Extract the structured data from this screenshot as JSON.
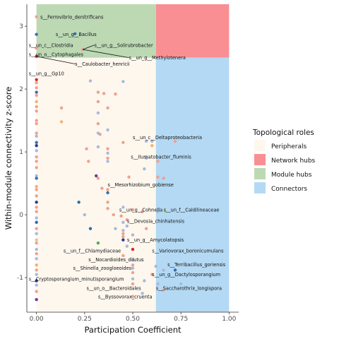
{
  "chart_data": {
    "type": "scatter",
    "xlabel": "Participation Coefficient",
    "ylabel": "Within-module connectivity z-score",
    "xlim": [
      -0.05,
      1.05
    ],
    "ylim": [
      -1.55,
      3.35
    ],
    "x_ticks": [
      0,
      0.25,
      0.5,
      0.75,
      1
    ],
    "x_tick_labels": [
      "0.00",
      "0.25",
      "0.50",
      "0.75",
      "1.00"
    ],
    "y_ticks": [
      -1,
      0,
      1,
      2,
      3
    ],
    "y_tick_labels": [
      "-1",
      "0",
      "1",
      "2",
      "3"
    ],
    "grid": false,
    "regions": [
      {
        "name": "Peripherals",
        "color": "#fdf7ee",
        "x": [
          0,
          0.62
        ],
        "y": [
          -1.55,
          2.5
        ]
      },
      {
        "name": "Network hubs",
        "color": "#f98f93",
        "x": [
          0.62,
          1.0
        ],
        "y": [
          2.5,
          3.35
        ]
      },
      {
        "name": "Module hubs",
        "color": "#bcd9b4",
        "x": [
          0,
          0.62
        ],
        "y": [
          2.5,
          3.35
        ]
      },
      {
        "name": "Connectors",
        "color": "#b4d9f4",
        "x": [
          0.62,
          1.0
        ],
        "y": [
          -1.55,
          2.5
        ]
      }
    ],
    "legend": {
      "title": "Topological roles",
      "position": "right",
      "entries": [
        {
          "label": "Peripherals",
          "color": "#fdf7ee"
        },
        {
          "label": "Network hubs",
          "color": "#f98f93"
        },
        {
          "label": "Module hubs",
          "color": "#bcd9b4"
        },
        {
          "label": "Connectors",
          "color": "#b4d9f4"
        }
      ]
    },
    "points": [
      {
        "x": 0.0,
        "y": 3.15,
        "c": "#f0a090"
      },
      {
        "x": 0.0,
        "y": 2.87,
        "c": "#3a6fb0"
      },
      {
        "x": 0.0,
        "y": 2.65,
        "c": "#f0a090"
      },
      {
        "x": 0.0,
        "y": 2.52,
        "c": "#d62728"
      },
      {
        "x": 0.0,
        "y": 2.15,
        "c": "#d62728"
      },
      {
        "x": 0.0,
        "y": 2.1,
        "c": "#f0a090"
      },
      {
        "x": 0.0,
        "y": 2.02,
        "c": "#f0a090"
      },
      {
        "x": 0.0,
        "y": 1.95,
        "c": "#3a6fb0"
      },
      {
        "x": 0.0,
        "y": 1.9,
        "c": "#f0a090"
      },
      {
        "x": 0.0,
        "y": 1.8,
        "c": "#f4b26a"
      },
      {
        "x": 0.0,
        "y": 1.72,
        "c": "#f0a090"
      },
      {
        "x": 0.0,
        "y": 1.65,
        "c": "#f0a090"
      },
      {
        "x": 0.0,
        "y": 1.5,
        "c": "#f0a090"
      },
      {
        "x": 0.0,
        "y": 1.45,
        "c": "#f0a090"
      },
      {
        "x": 0.0,
        "y": 1.3,
        "c": "#f0a090"
      },
      {
        "x": 0.0,
        "y": 1.25,
        "c": "#a8b9dd"
      },
      {
        "x": 0.0,
        "y": 1.15,
        "c": "#3a6fb0"
      },
      {
        "x": 0.0,
        "y": 1.1,
        "c": "#2b3a8f"
      },
      {
        "x": 0.0,
        "y": 1.02,
        "c": "#a8b9dd"
      },
      {
        "x": 0.0,
        "y": 0.92,
        "c": "#f0a090"
      },
      {
        "x": 0.0,
        "y": 0.85,
        "c": "#f0a090"
      },
      {
        "x": 0.0,
        "y": 0.75,
        "c": "#f0a090"
      },
      {
        "x": 0.0,
        "y": 0.62,
        "c": "#a8b9dd"
      },
      {
        "x": 0.0,
        "y": 0.58,
        "c": "#3a6fb0"
      },
      {
        "x": 0.0,
        "y": 0.45,
        "c": "#f4b26a"
      },
      {
        "x": 0.0,
        "y": 0.4,
        "c": "#f0a090"
      },
      {
        "x": 0.0,
        "y": 0.3,
        "c": "#f0a090"
      },
      {
        "x": 0.0,
        "y": 0.2,
        "c": "#2b3a8f"
      },
      {
        "x": 0.0,
        "y": 0.12,
        "c": "#f0a090"
      },
      {
        "x": 0.0,
        "y": 0.05,
        "c": "#f0a090"
      },
      {
        "x": 0.0,
        "y": -0.05,
        "c": "#a8b9dd"
      },
      {
        "x": 0.0,
        "y": -0.12,
        "c": "#2b6cb0"
      },
      {
        "x": 0.0,
        "y": -0.22,
        "c": "#f0a090"
      },
      {
        "x": 0.0,
        "y": -0.3,
        "c": "#a8b9dd"
      },
      {
        "x": 0.0,
        "y": -0.4,
        "c": "#d4c9a0"
      },
      {
        "x": 0.0,
        "y": -0.45,
        "c": "#f0a090"
      },
      {
        "x": 0.0,
        "y": -0.55,
        "c": "#a8b9dd"
      },
      {
        "x": 0.0,
        "y": -0.62,
        "c": "#f0a090"
      },
      {
        "x": 0.0,
        "y": -0.7,
        "c": "#a8b9dd"
      },
      {
        "x": 0.0,
        "y": -0.8,
        "c": "#f4b26a"
      },
      {
        "x": 0.0,
        "y": -0.88,
        "c": "#f0a090"
      },
      {
        "x": 0.0,
        "y": -0.95,
        "c": "#a8b9dd"
      },
      {
        "x": 0.0,
        "y": -1.05,
        "c": "#2b3a8f"
      },
      {
        "x": 0.0,
        "y": -1.12,
        "c": "#a8b9dd"
      },
      {
        "x": 0.0,
        "y": -1.22,
        "c": "#f0a090"
      },
      {
        "x": 0.0,
        "y": -1.35,
        "c": "#6a3d9a"
      },
      {
        "x": 0.2,
        "y": 2.88,
        "c": "#3a6fb0"
      },
      {
        "x": 0.24,
        "y": 2.63,
        "c": "#f0a090"
      },
      {
        "x": 0.28,
        "y": 2.13,
        "c": "#a8b9dd"
      },
      {
        "x": 0.32,
        "y": 1.95,
        "c": "#f0a090"
      },
      {
        "x": 0.35,
        "y": 1.93,
        "c": "#f0a090"
      },
      {
        "x": 0.41,
        "y": 1.92,
        "c": "#f0a090"
      },
      {
        "x": 0.45,
        "y": 2.12,
        "c": "#a8b9dd"
      },
      {
        "x": 0.32,
        "y": 1.8,
        "c": "#f0a090"
      },
      {
        "x": 0.37,
        "y": 1.7,
        "c": "#f0a090"
      },
      {
        "x": 0.13,
        "y": 1.7,
        "c": "#f0a090"
      },
      {
        "x": 0.32,
        "y": 1.62,
        "c": "#a8b9dd"
      },
      {
        "x": 0.13,
        "y": 1.48,
        "c": "#f4b26a"
      },
      {
        "x": 0.32,
        "y": 1.45,
        "c": "#f0a090"
      },
      {
        "x": 0.33,
        "y": 1.28,
        "c": "#f0a090"
      },
      {
        "x": 0.37,
        "y": 1.35,
        "c": "#a8b9dd"
      },
      {
        "x": 0.32,
        "y": 1.3,
        "c": "#a8b9dd"
      },
      {
        "x": 0.26,
        "y": 1.05,
        "c": "#f0a090"
      },
      {
        "x": 0.32,
        "y": 1.08,
        "c": "#a8b9dd"
      },
      {
        "x": 0.37,
        "y": 1.05,
        "c": "#f0a090"
      },
      {
        "x": 0.37,
        "y": 0.98,
        "c": "#a8b9dd"
      },
      {
        "x": 0.37,
        "y": 0.9,
        "c": "#f0a090"
      },
      {
        "x": 0.45,
        "y": 1.15,
        "c": "#f0a090"
      },
      {
        "x": 0.57,
        "y": 1.17,
        "c": "#a8b9dd"
      },
      {
        "x": 0.6,
        "y": 1.17,
        "c": "#a8b9dd"
      },
      {
        "x": 0.6,
        "y": 1.1,
        "c": "#f4b26a"
      },
      {
        "x": 0.72,
        "y": 1.17,
        "c": "#f0a090"
      },
      {
        "x": 0.57,
        "y": 0.9,
        "c": "#a8b9dd"
      },
      {
        "x": 0.27,
        "y": 0.85,
        "c": "#f0a090"
      },
      {
        "x": 0.37,
        "y": 0.85,
        "c": "#a8b9dd"
      },
      {
        "x": 0.63,
        "y": 0.85,
        "c": "#f0a090"
      },
      {
        "x": 0.56,
        "y": 0.73,
        "c": "#a8b9dd"
      },
      {
        "x": 0.31,
        "y": 0.62,
        "c": "#6a3d9a"
      },
      {
        "x": 0.32,
        "y": 0.58,
        "c": "#f0a090"
      },
      {
        "x": 0.48,
        "y": 0.6,
        "c": "#f0a090"
      },
      {
        "x": 0.63,
        "y": 0.6,
        "c": "#f0a090"
      },
      {
        "x": 0.66,
        "y": 0.58,
        "c": "#f0a090"
      },
      {
        "x": 0.34,
        "y": 0.42,
        "c": "#f0a090"
      },
      {
        "x": 0.37,
        "y": 0.4,
        "c": "#f0a090"
      },
      {
        "x": 0.37,
        "y": 0.35,
        "c": "#3a6fb0"
      },
      {
        "x": 0.37,
        "y": 0.2,
        "c": "#f0a090"
      },
      {
        "x": 0.22,
        "y": 0.2,
        "c": "#2b6cb0"
      },
      {
        "x": 0.37,
        "y": 0.1,
        "c": "#f0a090"
      },
      {
        "x": 0.45,
        "y": 0.12,
        "c": "#a8b9dd"
      },
      {
        "x": 0.5,
        "y": 0.08,
        "c": "#f0a090"
      },
      {
        "x": 0.55,
        "y": 0.05,
        "c": "#f0a090"
      },
      {
        "x": 0.63,
        "y": 0.05,
        "c": "#a8b9dd"
      },
      {
        "x": 0.67,
        "y": 0.05,
        "c": "#b6d8a0"
      },
      {
        "x": 0.25,
        "y": 0.0,
        "c": "#a8b9dd"
      },
      {
        "x": 0.4,
        "y": 0.0,
        "c": "#f0a090"
      },
      {
        "x": 0.44,
        "y": -0.02,
        "c": "#f0a090"
      },
      {
        "x": 0.45,
        "y": -0.12,
        "c": "#a8b9dd"
      },
      {
        "x": 0.47,
        "y": -0.08,
        "c": "#f0a090"
      },
      {
        "x": 0.47,
        "y": -0.18,
        "c": "#a8b9dd"
      },
      {
        "x": 0.28,
        "y": -0.22,
        "c": "#2b6cb0"
      },
      {
        "x": 0.41,
        "y": -0.22,
        "c": "#a8b9dd"
      },
      {
        "x": 0.45,
        "y": -0.25,
        "c": "#a8b9dd"
      },
      {
        "x": 0.45,
        "y": -0.3,
        "c": "#f0a090"
      },
      {
        "x": 0.5,
        "y": -0.32,
        "c": "#a8b9dd"
      },
      {
        "x": 0.57,
        "y": -0.22,
        "c": "#f0a090"
      },
      {
        "x": 0.45,
        "y": -0.4,
        "c": "#2b3a8f"
      },
      {
        "x": 0.45,
        "y": -0.35,
        "c": "#f0a090"
      },
      {
        "x": 0.32,
        "y": -0.45,
        "c": "#4caf50"
      },
      {
        "x": 0.47,
        "y": -0.5,
        "c": "#a8b9dd"
      },
      {
        "x": 0.5,
        "y": -0.55,
        "c": "#d62728"
      },
      {
        "x": 0.45,
        "y": -0.65,
        "c": "#f0a090"
      },
      {
        "x": 0.5,
        "y": -0.72,
        "c": "#a8b9dd"
      },
      {
        "x": 0.5,
        "y": -0.8,
        "c": "#f0a090"
      },
      {
        "x": 0.5,
        "y": -0.85,
        "c": "#a8b9dd"
      },
      {
        "x": 0.5,
        "y": -0.92,
        "c": "#f0a090"
      },
      {
        "x": 0.5,
        "y": -1.02,
        "c": "#a8b9dd"
      },
      {
        "x": 0.5,
        "y": -1.1,
        "c": "#f0a090"
      },
      {
        "x": 0.56,
        "y": -1.05,
        "c": "#a8b9dd"
      },
      {
        "x": 0.62,
        "y": -0.82,
        "c": "#a8b9dd"
      },
      {
        "x": 0.66,
        "y": -0.88,
        "c": "#a8b9dd"
      },
      {
        "x": 0.72,
        "y": -0.88,
        "c": "#3a6fb0"
      },
      {
        "x": 0.6,
        "y": -0.95,
        "c": "#f0a090"
      },
      {
        "x": 0.63,
        "y": -1.1,
        "c": "#a8b9dd"
      },
      {
        "x": 0.66,
        "y": -1.2,
        "c": "#f0a090"
      },
      {
        "x": 0.75,
        "y": -1.1,
        "c": "#a8b9dd"
      },
      {
        "x": 0.55,
        "y": -1.25,
        "c": "#a8b9dd"
      },
      {
        "x": 0.5,
        "y": -1.3,
        "c": "#f0a090"
      }
    ],
    "labels": [
      {
        "text": "s__Ferrovibrio_denitrificans",
        "x": 0.02,
        "y": 3.15,
        "tx": 0.02,
        "ty": 3.15
      },
      {
        "text": "s__un_g__Bacillus",
        "x": 0.1,
        "y": 2.87,
        "tx": 0.1,
        "ty": 2.87
      },
      {
        "text": "s__un_g__Solirubrobacter",
        "x": 0.3,
        "y": 2.7,
        "tx": 0.24,
        "ty": 2.63
      },
      {
        "text": "s__un_c__Clostridia",
        "x": -0.04,
        "y": 2.7,
        "tx": -0.04,
        "ty": 2.7
      },
      {
        "text": "s__un_o__Cytophagales",
        "x": -0.04,
        "y": 2.55,
        "tx": -0.04,
        "ty": 2.55
      },
      {
        "text": "s__un_g__Methylotenera",
        "x": 0.48,
        "y": 2.5,
        "tx": 0.24,
        "ty": 2.63
      },
      {
        "text": "s__Caulobacter_henricii",
        "x": 0.2,
        "y": 2.4,
        "tx": 0.0,
        "ty": 2.52
      },
      {
        "text": "s__un_g__Gp10",
        "x": -0.04,
        "y": 2.25,
        "tx": -0.04,
        "ty": 2.25
      },
      {
        "text": "s__un_c__Deltaproteobacteria",
        "x": 0.5,
        "y": 1.23,
        "tx": 0.5,
        "ty": 1.23
      },
      {
        "text": "s__Ilumatobacter_fluminis",
        "x": 0.49,
        "y": 0.92,
        "tx": 0.49,
        "ty": 0.92
      },
      {
        "text": "s__Mesorhizobium_gobiense",
        "x": 0.37,
        "y": 0.48,
        "tx": 0.37,
        "ty": 0.48
      },
      {
        "text": "s__un_g__Cohnella",
        "x": 0.43,
        "y": 0.08,
        "tx": 0.43,
        "ty": 0.08
      },
      {
        "text": "s__un_f__Caldilineaceae",
        "x": 0.66,
        "y": 0.08,
        "tx": 0.66,
        "ty": 0.08
      },
      {
        "text": "s__Devosia_chinhatensis",
        "x": 0.47,
        "y": -0.1,
        "tx": 0.47,
        "ty": -0.1
      },
      {
        "text": "s__un_g__Amycolatopsis",
        "x": 0.47,
        "y": -0.4,
        "tx": 0.47,
        "ty": -0.4
      },
      {
        "text": "s__un_f__Chlamydiaceae",
        "x": 0.14,
        "y": -0.57,
        "tx": 0.14,
        "ty": -0.57
      },
      {
        "text": "s__Variovorax_boronicumulans",
        "x": 0.6,
        "y": -0.57,
        "tx": 0.6,
        "ty": -0.57
      },
      {
        "text": "s__Nocardioides_dilutus",
        "x": 0.27,
        "y": -0.71,
        "tx": 0.27,
        "ty": -0.71
      },
      {
        "text": "s__Terribacillus_goriensis",
        "x": 0.68,
        "y": -0.79,
        "tx": 0.68,
        "ty": -0.79
      },
      {
        "text": "s__Shinella_zoogloeoides",
        "x": 0.19,
        "y": -0.85,
        "tx": 0.19,
        "ty": -0.85
      },
      {
        "text": "s__un_g__Dactylosporangium",
        "x": 0.6,
        "y": -0.95,
        "tx": 0.6,
        "ty": -0.95
      },
      {
        "text": "s__Cryptosporangium_minutisporangium",
        "x": -0.04,
        "y": -1.02,
        "tx": -0.04,
        "ty": -1.02
      },
      {
        "text": "s__un_o__Bacteroidales",
        "x": 0.26,
        "y": -1.17,
        "tx": 0.26,
        "ty": -1.17
      },
      {
        "text": "s__Saccharothrix_longispora",
        "x": 0.62,
        "y": -1.17,
        "tx": 0.62,
        "ty": -1.17
      },
      {
        "text": "s__Byssovorax_cruenta",
        "x": 0.32,
        "y": -1.3,
        "tx": 0.32,
        "ty": -1.3
      }
    ]
  }
}
